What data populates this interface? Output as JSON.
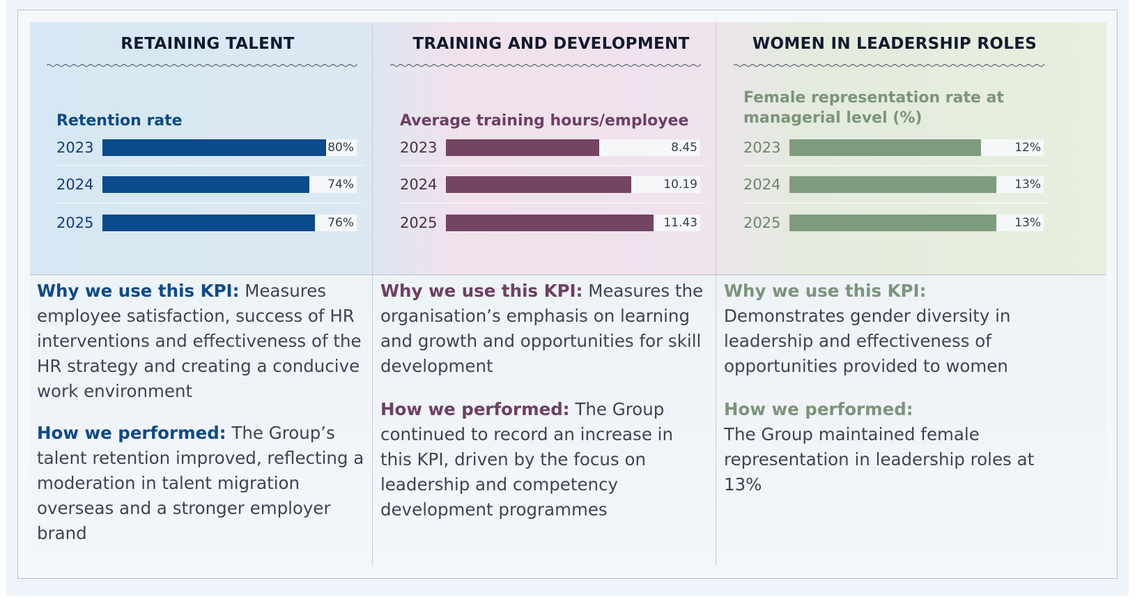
{
  "panels": [
    {
      "title": "RETAINING TALENT",
      "metric_label": "Retention rate",
      "accent": "#0d4a8a",
      "bar_color": "#0b4a8b",
      "year_color": "#123e78",
      "why_label": "Why we use this KPI:",
      "why_text": " Measures employee satisfaction, success of HR interventions and effectiveness of the HR strategy and creating a conducive work environment",
      "how_label": "How we performed:",
      "how_text": "  The Group’s talent retention improved, reflecting a moderation in talent migration overseas and a stronger employer brand"
    },
    {
      "title": "TRAINING AND DEVELOPMENT",
      "metric_label": "Average training hours/employee",
      "accent": "#6e3f63",
      "bar_color": "#744463",
      "year_color": "#4a2f48",
      "why_label": "Why we use this KPI:",
      "why_text": " Measures the organisation’s emphasis on learning and growth and opportunities for skill development",
      "how_label": "How we performed:",
      "how_text": " The Group continued to record an increase in this KPI, driven by the focus on leadership and competency development programmes"
    },
    {
      "title": "WOMEN IN LEADERSHIP ROLES",
      "metric_label": "Female representation rate at managerial level (%)",
      "accent": "#7c9479",
      "bar_color": "#7f9b7e",
      "year_color": "#6f856d",
      "why_label": "Why we use this KPI:",
      "why_text": " Demonstrates gender diversity in leadership and effectiveness of opportunities provided to women",
      "how_label": "How we performed:",
      "how_text": "The Group maintained female representation in leadership roles at 13%"
    }
  ],
  "chart_data": [
    {
      "type": "bar",
      "title": "Retention rate",
      "categories": [
        "2023",
        "2024",
        "2025"
      ],
      "values": [
        80,
        74,
        76
      ],
      "labels": [
        "80%",
        "74%",
        "76%"
      ],
      "unit": "%"
    },
    {
      "type": "bar",
      "title": "Average training hours/employee",
      "categories": [
        "2023",
        "2024",
        "2025"
      ],
      "values": [
        8.45,
        10.19,
        11.43
      ],
      "labels": [
        "8.45",
        "10.19",
        "11.43"
      ]
    },
    {
      "type": "bar",
      "title": "Female representation rate at managerial level (%)",
      "categories": [
        "2023",
        "2024",
        "2025"
      ],
      "values": [
        12,
        13,
        13
      ],
      "labels": [
        "12%",
        "13%",
        "13%"
      ],
      "unit": "%"
    }
  ]
}
